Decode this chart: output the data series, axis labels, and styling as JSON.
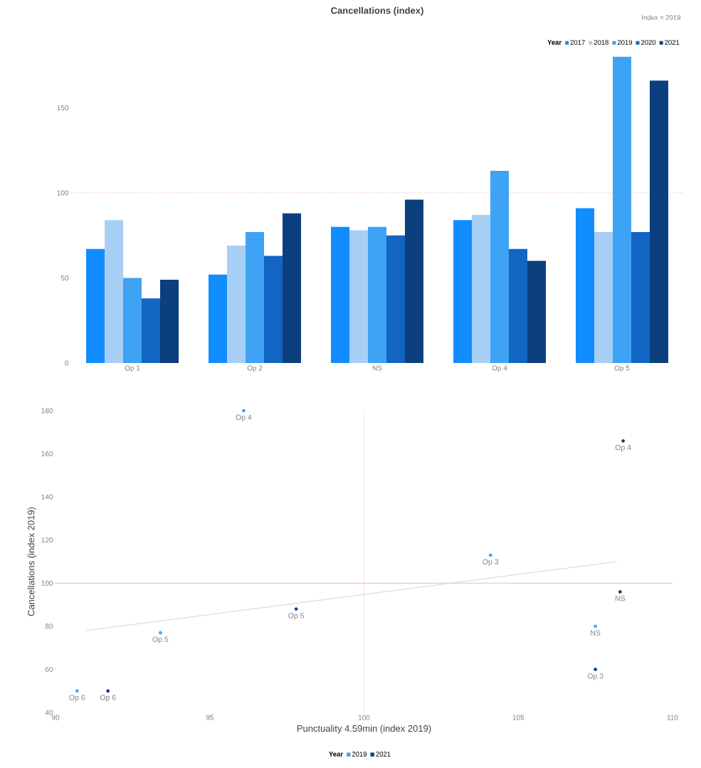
{
  "chart_data": [
    {
      "type": "bar",
      "title": "Cancellations (index)",
      "legend_title": "Year",
      "annotations": [
        "Index = 2019"
      ],
      "categories": [
        "Op 1",
        "Op 2",
        "NS",
        "Op 4",
        "Op 5"
      ],
      "series": [
        {
          "name": "2017",
          "color": "#118dff",
          "values": [
            67,
            52,
            80,
            84,
            91
          ]
        },
        {
          "name": "2018",
          "color": "#a7cff5",
          "values": [
            84,
            69,
            78,
            87,
            77
          ]
        },
        {
          "name": "2019",
          "color": "#3ea2f5",
          "values": [
            50,
            77,
            80,
            113,
            180
          ]
        },
        {
          "name": "2020",
          "color": "#1265c2",
          "values": [
            38,
            63,
            75,
            67,
            77
          ]
        },
        {
          "name": "2021",
          "color": "#0b3f7d",
          "values": [
            49,
            88,
            96,
            60,
            166
          ]
        }
      ],
      "ylim": [
        0,
        182
      ],
      "yticks": [
        0,
        50,
        100,
        150
      ],
      "legend": "top right",
      "ref_lines": [
        {
          "axis": "y",
          "value": 100,
          "color": "#f29a9a",
          "line_style": "dotted"
        }
      ]
    },
    {
      "type": "scatter",
      "xlabel": "Punctuality 4.59min (index 2019)",
      "ylabel": "Cancellations (index 2019)",
      "legend_title": "Year",
      "series": [
        {
          "name": "2019",
          "color": "#3ea2f5",
          "marker": "circle",
          "x": [
            96.1,
            104.1,
            107.5,
            93.4,
            90.7
          ],
          "values": [
            180,
            113,
            80,
            77,
            50
          ]
        },
        {
          "name": "2021",
          "color": "#0b3f7d",
          "marker": "circle",
          "x": [
            108.4,
            108.3,
            97.8,
            107.5,
            91.7
          ],
          "values": [
            166,
            96,
            88,
            60,
            50
          ]
        },
        {
          "type": "line",
          "marker": "none",
          "color": "#cfcfcf",
          "x": [
            91,
            108.2
          ],
          "values": [
            78,
            110
          ]
        }
      ],
      "annotations": [
        {
          "text": "Op 4",
          "x": 96.1,
          "y": 180
        },
        {
          "text": "Op 3",
          "x": 104.1,
          "y": 113
        },
        {
          "text": "NS",
          "x": 107.5,
          "y": 80
        },
        {
          "text": "Op 5",
          "x": 93.4,
          "y": 77
        },
        {
          "text": "Op 6",
          "x": 90.7,
          "y": 50
        },
        {
          "text": "Op 4",
          "x": 108.4,
          "y": 166
        },
        {
          "text": "NS",
          "x": 108.3,
          "y": 96
        },
        {
          "text": "Op 5",
          "x": 97.8,
          "y": 88
        },
        {
          "text": "Op 3",
          "x": 107.5,
          "y": 60
        },
        {
          "text": "Op 6",
          "x": 91.7,
          "y": 50
        }
      ],
      "xlim": [
        90,
        110
      ],
      "xticks": [
        90,
        95,
        100,
        105,
        110
      ],
      "ylim": [
        40,
        180
      ],
      "yticks": [
        40,
        60,
        80,
        100,
        120,
        140,
        160,
        180
      ],
      "legend": "bottom",
      "ref_lines": [
        {
          "axis": "x",
          "value": 100,
          "color": "#f29a9a",
          "line_style": "dotted"
        },
        {
          "axis": "y",
          "value": 100,
          "color": "#f2b0b0",
          "line_style": "solid"
        }
      ]
    }
  ]
}
